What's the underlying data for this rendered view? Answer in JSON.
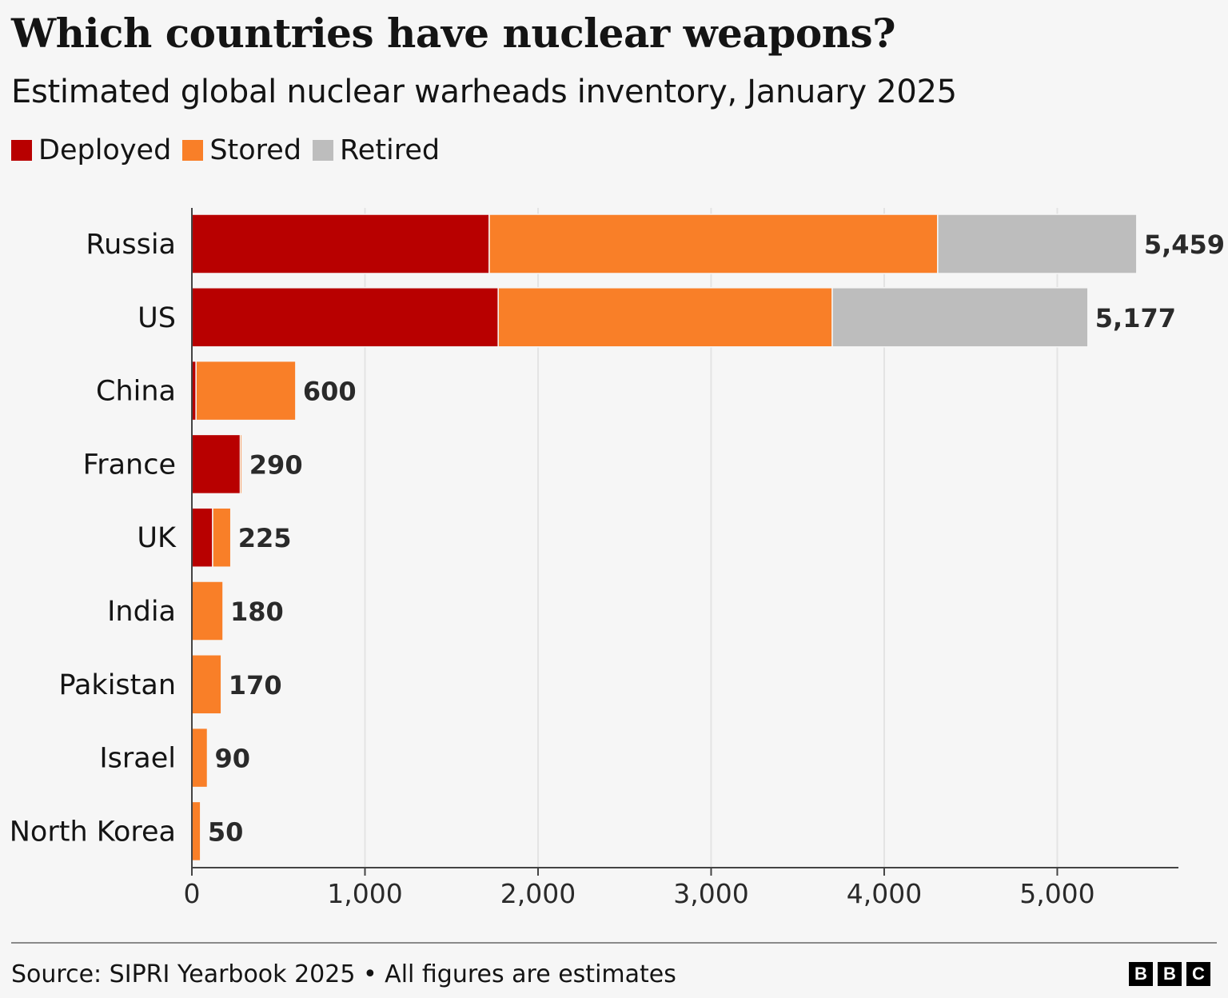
{
  "header": {
    "title": "Which countries have nuclear weapons?",
    "subtitle": "Estimated global nuclear warheads inventory, January 2025"
  },
  "legend": [
    {
      "label": "Deployed",
      "color": "#b80000"
    },
    {
      "label": "Stored",
      "color": "#f97f28"
    },
    {
      "label": "Retired",
      "color": "#bdbdbd"
    }
  ],
  "footer": {
    "source": "Source: SIPRI Yearbook 2025 • All figures are estimates",
    "logo_letters": [
      "B",
      "B",
      "C"
    ]
  },
  "chart_data": {
    "type": "bar",
    "orientation": "horizontal",
    "stacked": true,
    "categories": [
      "Russia",
      "US",
      "China",
      "France",
      "UK",
      "India",
      "Pakistan",
      "Israel",
      "North Korea"
    ],
    "series": [
      {
        "name": "Deployed",
        "color": "#b80000",
        "values": [
          1718,
          1770,
          24,
          280,
          120,
          0,
          0,
          0,
          0
        ]
      },
      {
        "name": "Stored",
        "color": "#f97f28",
        "values": [
          2591,
          1930,
          576,
          10,
          105,
          180,
          170,
          90,
          50
        ]
      },
      {
        "name": "Retired",
        "color": "#bdbdbd",
        "values": [
          1150,
          1477,
          0,
          0,
          0,
          0,
          0,
          0,
          0
        ]
      }
    ],
    "totals": [
      "5,459",
      "5,177",
      "600",
      "290",
      "225",
      "180",
      "170",
      "90",
      "50"
    ],
    "xlim": [
      0,
      5700
    ],
    "xticks": [
      0,
      1000,
      2000,
      3000,
      4000,
      5000
    ],
    "xtick_labels": [
      "0",
      "1,000",
      "2,000",
      "3,000",
      "4,000",
      "5,000"
    ],
    "grid": true,
    "legend_position": "top-left"
  }
}
